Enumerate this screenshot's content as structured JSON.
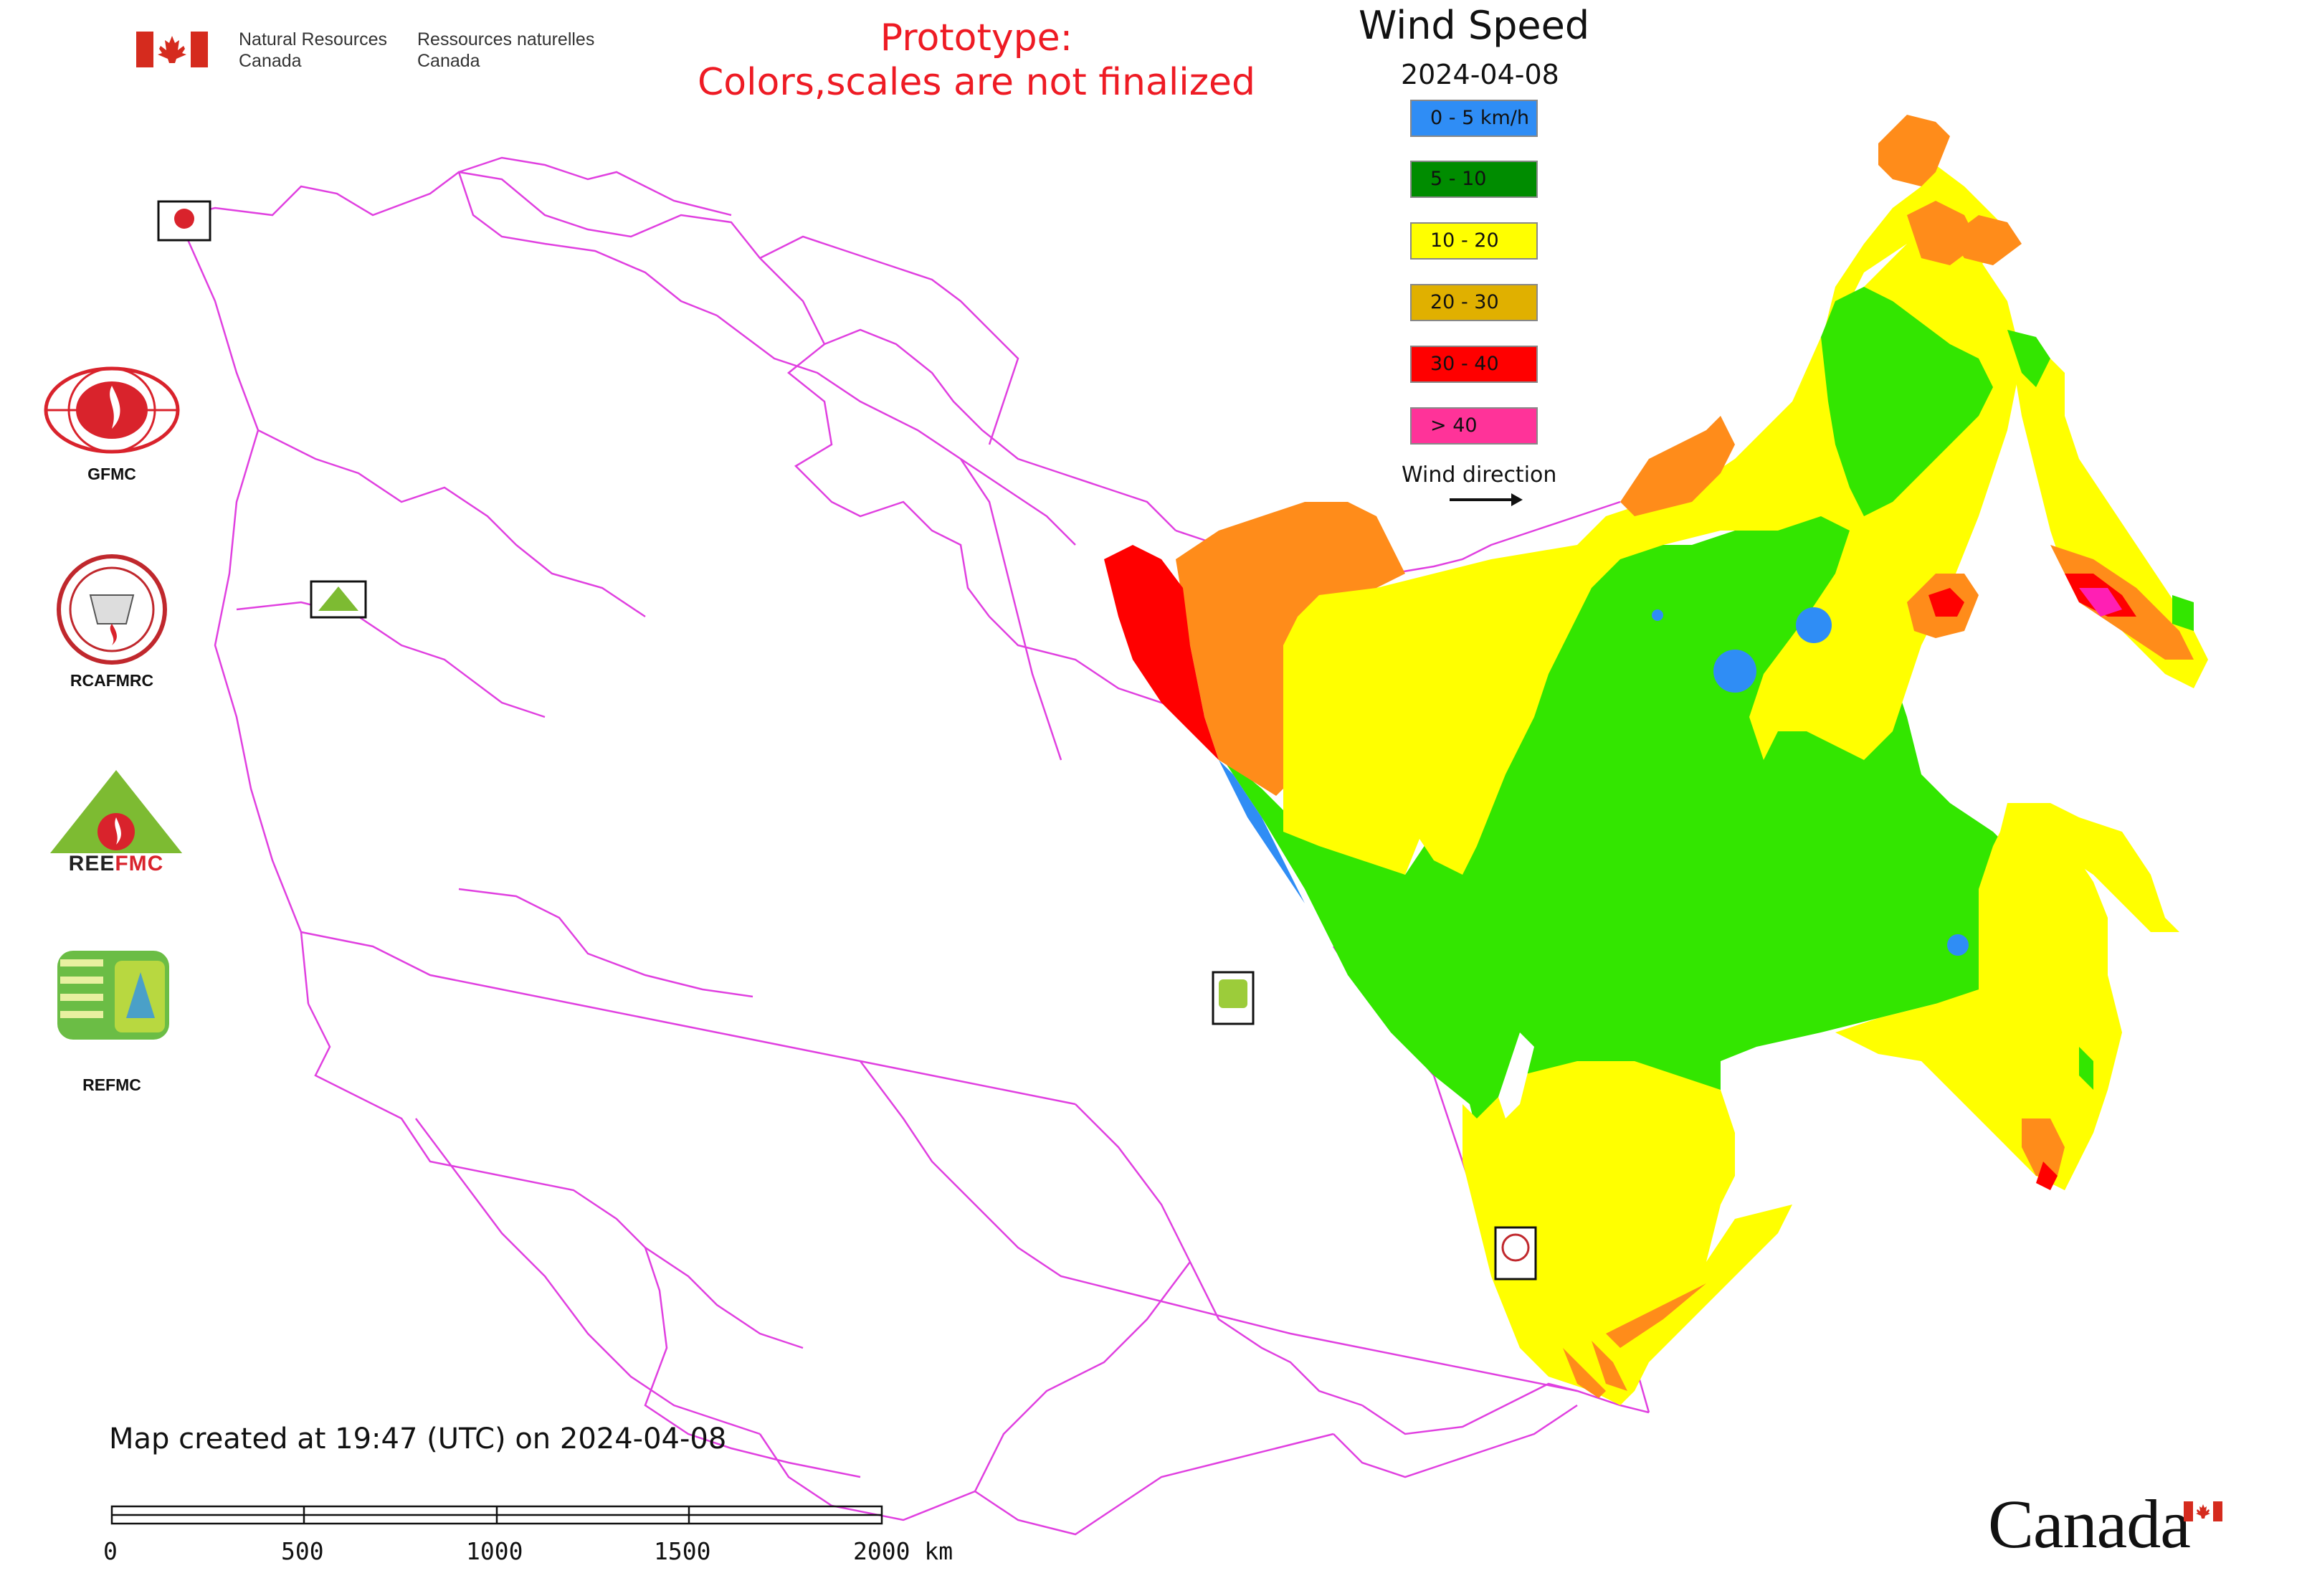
{
  "header": {
    "org_en_line1": "Natural Resources",
    "org_en_line2": "Canada",
    "org_fr_line1": "Ressources naturelles",
    "org_fr_line2": "Canada"
  },
  "notice": {
    "line1": "Prototype:",
    "line2": "Colors,scales are not finalized"
  },
  "legend": {
    "title": "Wind Speed",
    "date": "2024-04-08",
    "items": [
      {
        "label": "0 - 5 km/h",
        "color": "#2f8df5"
      },
      {
        "label": "5 - 10",
        "color": "#008c00"
      },
      {
        "label": "10 - 20",
        "color": "#ffff00"
      },
      {
        "label": "20 - 30",
        "color": "#e0b000"
      },
      {
        "label": "30 - 40",
        "color": "#ff0000"
      },
      {
        "label": "> 40",
        "color": "#ff3399"
      }
    ],
    "wind_direction_label": "Wind direction"
  },
  "map_colors": {
    "boundary": "#e040e0",
    "calm": "#2f8df5",
    "light": "#33e600",
    "moderate": "#ffff00",
    "fresh": "#ff8c1a",
    "strong": "#ff0000",
    "very_strong": "#ff1fb4"
  },
  "side_logos": [
    {
      "name": "gfmc-logo",
      "label": "GFMC"
    },
    {
      "name": "rcafmrc-logo",
      "label": "RCAFMRC"
    },
    {
      "name": "reefmc-logo",
      "label": "REEFMC"
    },
    {
      "name": "refmc-logo",
      "label": "REFMC"
    }
  ],
  "footer": {
    "created_note": "Map created at 19:47 (UTC) on 2024-04-08",
    "scale_labels": [
      "0",
      "500",
      "1000",
      "1500",
      "2000 km"
    ],
    "canada_wordmark": "Canada"
  }
}
